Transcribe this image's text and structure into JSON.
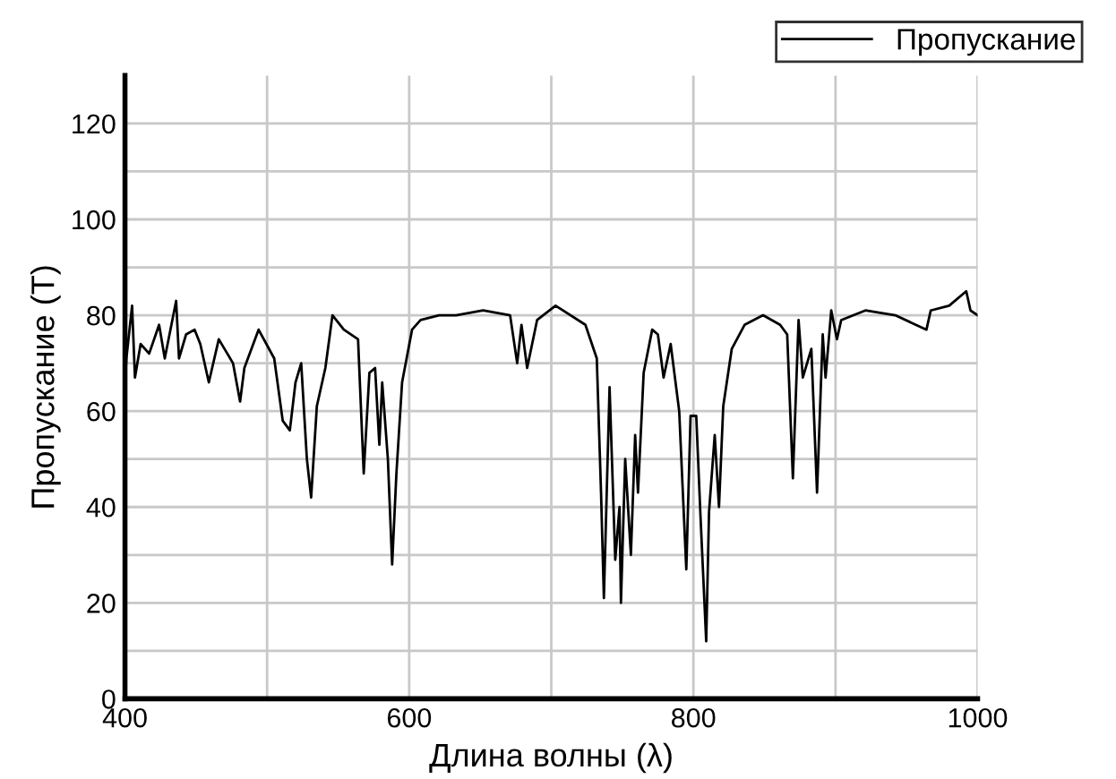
{
  "chart_data": {
    "type": "line",
    "xlabel": "Длина волны (λ)",
    "ylabel": "Пропускание (T)",
    "xlim": [
      400,
      1000
    ],
    "ylim": [
      0,
      130
    ],
    "xticks": [
      400,
      {
        "value": 500,
        "label": null
      },
      600,
      {
        "value": 700,
        "label": null
      },
      800,
      {
        "value": 900,
        "label": null
      },
      1000
    ],
    "yticks": [
      0,
      {
        "value": 10,
        "label": null
      },
      20,
      {
        "value": 30,
        "label": null
      },
      40,
      {
        "value": 50,
        "label": null
      },
      60,
      {
        "value": 70,
        "label": null
      },
      80,
      {
        "value": 90,
        "label": null
      },
      100,
      {
        "value": 110,
        "label": null
      },
      120
    ],
    "grid": true,
    "legend": "top right",
    "marker": "none",
    "line_style": "solid",
    "series": [
      {
        "name": "Пропускание",
        "color": "#000000",
        "x": [
          400,
          401,
          405,
          407,
          411,
          417,
          424,
          428,
          436,
          438,
          443,
          449,
          453,
          459,
          466,
          476,
          481,
          484,
          494,
          505,
          511,
          516,
          520,
          524,
          528,
          531,
          535,
          541,
          546,
          554,
          564,
          568,
          572,
          576,
          579,
          581,
          585,
          588,
          591,
          595,
          602,
          608,
          621,
          633,
          652,
          671,
          676,
          679,
          683,
          690,
          703,
          724,
          732,
          735,
          737,
          741,
          745,
          748,
          749,
          752,
          756,
          759,
          761,
          765,
          771,
          775,
          779,
          784,
          790,
          795,
          798,
          802,
          805,
          809,
          811,
          815,
          818,
          821,
          827,
          836,
          849,
          861,
          866,
          870,
          874,
          877,
          883,
          887,
          891,
          893,
          897,
          901,
          904,
          921,
          942,
          964,
          967,
          980,
          992,
          995,
          1000
        ],
        "values": [
          66,
          71,
          82,
          67,
          74,
          72,
          78,
          71,
          83,
          71,
          76,
          77,
          74,
          66,
          75,
          70,
          62,
          69,
          77,
          71,
          58,
          56,
          66,
          70,
          50,
          42,
          61,
          69,
          80,
          77,
          75,
          47,
          68,
          69,
          53,
          66,
          50,
          28,
          47,
          66,
          77,
          79,
          80,
          80,
          81,
          80,
          70,
          78,
          69,
          79,
          82,
          78,
          71,
          43,
          21,
          65,
          29,
          40,
          20,
          50,
          30,
          55,
          43,
          68,
          77,
          76,
          67,
          74,
          60,
          27,
          59,
          59,
          38,
          12,
          39,
          55,
          40,
          61,
          73,
          78,
          80,
          78,
          76,
          46,
          79,
          67,
          73,
          43,
          76,
          67,
          81,
          75,
          79,
          81,
          80,
          77,
          81,
          82,
          85,
          81,
          80
        ]
      }
    ]
  }
}
